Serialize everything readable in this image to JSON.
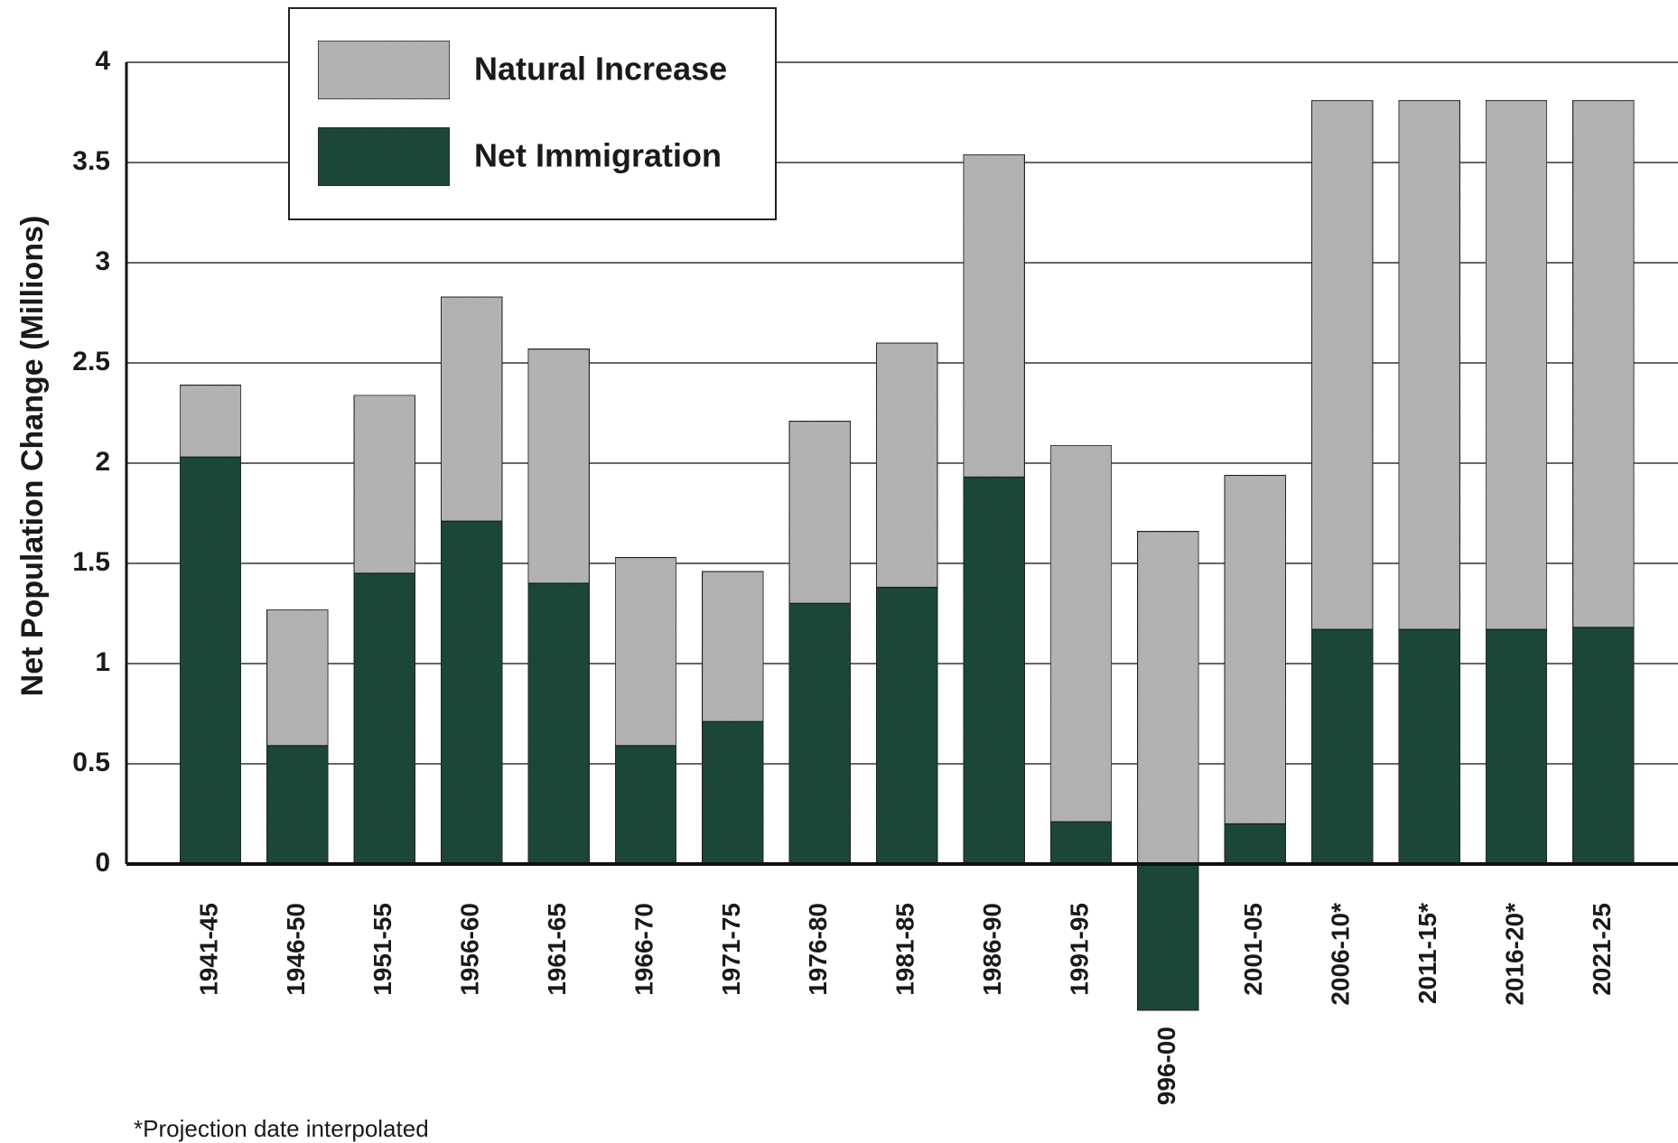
{
  "chart_data": {
    "type": "stacked_bar",
    "y_label": "Net Population Change (Millions)",
    "categories": [
      "1941-45",
      "1946-50",
      "1951-55",
      "1956-60",
      "1961-65",
      "1966-70",
      "1971-75",
      "1976-80",
      "1981-85",
      "1986-90",
      "1991-95",
      "996-00",
      "2001-05",
      "2006-10*",
      "2011-15*",
      "2016-20*",
      "2021-25"
    ],
    "series": [
      {
        "name": "Net Immigration",
        "color": "#1f4a3a",
        "values": [
          2.03,
          0.59,
          1.45,
          1.71,
          1.4,
          0.59,
          0.71,
          1.3,
          1.38,
          1.93,
          0.21,
          -0.73,
          0.2,
          1.17,
          1.17,
          1.17,
          1.18
        ]
      },
      {
        "name": "Natural Increase",
        "color": "#b9b9b9",
        "values": [
          0.36,
          0.68,
          0.89,
          1.12,
          1.17,
          0.94,
          0.75,
          0.91,
          1.22,
          1.61,
          1.88,
          1.66,
          1.74,
          2.64,
          2.64,
          2.64,
          2.63
        ]
      }
    ],
    "ylim": [
      -0.8,
      4.1
    ],
    "yticks": [
      0,
      0.5,
      1,
      1.5,
      2,
      2.5,
      3,
      3.5,
      4
    ],
    "grid": true,
    "footnote": "*Projection date interpolated"
  }
}
